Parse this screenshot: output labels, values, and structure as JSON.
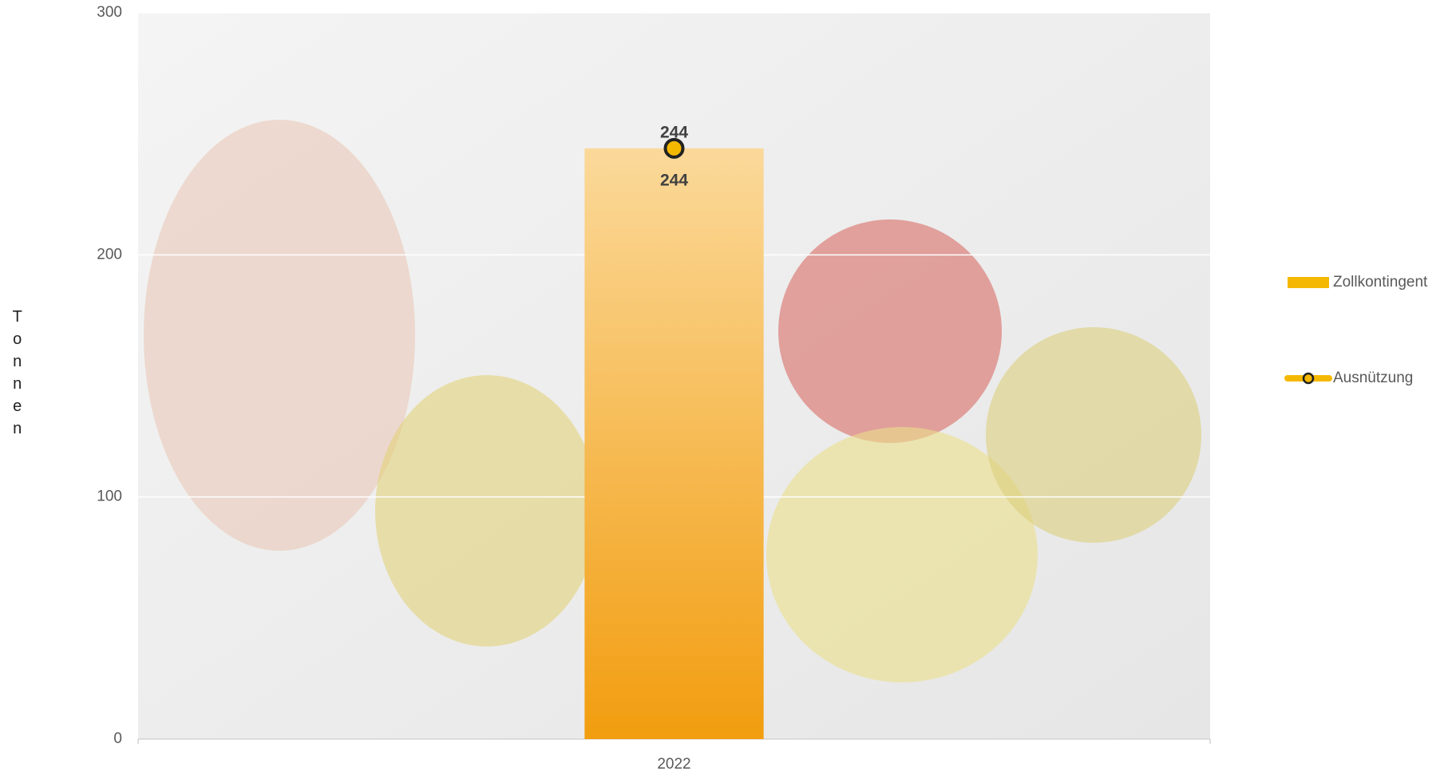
{
  "chart_data": {
    "type": "bar",
    "y_label": "Tonnen",
    "categories": [
      "2022"
    ],
    "series": [
      {
        "name": "Zollkontingent",
        "type": "bar",
        "color": "#f5b800",
        "values": [
          244
        ]
      },
      {
        "name": "Ausnützung",
        "type": "line",
        "color": "#f5b800",
        "values": [
          244
        ]
      }
    ],
    "ylim": [
      0,
      300
    ],
    "yticks": [
      0,
      100,
      200,
      300
    ],
    "grid": true,
    "legend": "right"
  }
}
